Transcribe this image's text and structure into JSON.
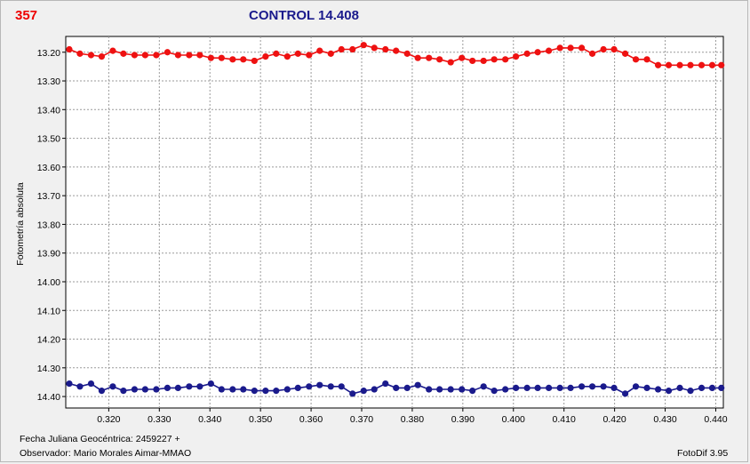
{
  "header": {
    "object_id": "357",
    "title": "CONTROL 14.408"
  },
  "footer": {
    "jd_label": "Fecha Juliana Geocéntrica: 2459227 +",
    "observer_label": "Observador: Mario Morales Aimar-MMAO",
    "software": "FotoDif 3.95"
  },
  "colors": {
    "series_red": "#ee1111",
    "series_blue": "#1a1a8c",
    "grid": "#9a9a9a",
    "plot_bg": "#ffffff"
  },
  "chart_data": {
    "type": "scatter",
    "ylabel": "Fotometría absoluta",
    "xlabel": "",
    "xlim": [
      0.3115,
      0.4415
    ],
    "ylim": [
      14.44,
      13.145
    ],
    "y_inverted": true,
    "grid": true,
    "x_ticks": [
      "0.320",
      "0.330",
      "0.340",
      "0.350",
      "0.360",
      "0.370",
      "0.380",
      "0.390",
      "0.400",
      "0.410",
      "0.420",
      "0.430",
      "0.440"
    ],
    "y_ticks": [
      "13.20",
      "13.30",
      "13.40",
      "13.50",
      "13.60",
      "13.70",
      "13.80",
      "13.90",
      "14.00",
      "14.10",
      "14.20",
      "14.30",
      "14.40"
    ],
    "series": [
      {
        "color": "#ee1111",
        "x": [
          0.3122,
          0.3143,
          0.3165,
          0.3186,
          0.3208,
          0.3229,
          0.3251,
          0.3272,
          0.3294,
          0.3316,
          0.3337,
          0.3359,
          0.338,
          0.3402,
          0.3423,
          0.3445,
          0.3466,
          0.3488,
          0.351,
          0.3531,
          0.3553,
          0.3574,
          0.3596,
          0.3617,
          0.3639,
          0.366,
          0.3682,
          0.3704,
          0.3725,
          0.3747,
          0.3768,
          0.379,
          0.3811,
          0.3833,
          0.3854,
          0.3876,
          0.3898,
          0.3919,
          0.3941,
          0.3962,
          0.3984,
          0.4005,
          0.4027,
          0.4048,
          0.407,
          0.4092,
          0.4113,
          0.4135,
          0.4156,
          0.4178,
          0.4199,
          0.4221,
          0.4242,
          0.4264,
          0.4286,
          0.4307,
          0.4329,
          0.435,
          0.4372,
          0.4393,
          0.4411
        ],
        "y": [
          13.19,
          13.205,
          13.21,
          13.215,
          13.195,
          13.205,
          13.21,
          13.21,
          13.21,
          13.2,
          13.21,
          13.21,
          13.21,
          13.22,
          13.22,
          13.225,
          13.225,
          13.23,
          13.215,
          13.205,
          13.215,
          13.205,
          13.21,
          13.195,
          13.205,
          13.19,
          13.19,
          13.175,
          13.185,
          13.19,
          13.195,
          13.205,
          13.22,
          13.22,
          13.225,
          13.235,
          13.22,
          13.23,
          13.23,
          13.225,
          13.225,
          13.215,
          13.205,
          13.2,
          13.195,
          13.185,
          13.185,
          13.185,
          13.205,
          13.19,
          13.19,
          13.205,
          13.225,
          13.225,
          13.245,
          13.245,
          13.245,
          13.245,
          13.245,
          13.245,
          13.245
        ]
      },
      {
        "color": "#1a1a8c",
        "x": [
          0.3122,
          0.3143,
          0.3165,
          0.3186,
          0.3208,
          0.3229,
          0.3251,
          0.3272,
          0.3294,
          0.3316,
          0.3337,
          0.3359,
          0.338,
          0.3402,
          0.3423,
          0.3445,
          0.3466,
          0.3488,
          0.351,
          0.3531,
          0.3553,
          0.3574,
          0.3596,
          0.3617,
          0.3639,
          0.366,
          0.3682,
          0.3704,
          0.3725,
          0.3747,
          0.3768,
          0.379,
          0.3811,
          0.3833,
          0.3854,
          0.3876,
          0.3898,
          0.3919,
          0.3941,
          0.3962,
          0.3984,
          0.4005,
          0.4027,
          0.4048,
          0.407,
          0.4092,
          0.4113,
          0.4135,
          0.4156,
          0.4178,
          0.4199,
          0.4221,
          0.4242,
          0.4264,
          0.4286,
          0.4307,
          0.4329,
          0.435,
          0.4372,
          0.4393,
          0.4411
        ],
        "y": [
          14.355,
          14.365,
          14.355,
          14.38,
          14.365,
          14.38,
          14.375,
          14.375,
          14.375,
          14.37,
          14.37,
          14.365,
          14.365,
          14.355,
          14.375,
          14.375,
          14.375,
          14.38,
          14.38,
          14.38,
          14.375,
          14.37,
          14.365,
          14.36,
          14.365,
          14.365,
          14.39,
          14.38,
          14.375,
          14.355,
          14.37,
          14.37,
          14.36,
          14.375,
          14.375,
          14.375,
          14.375,
          14.38,
          14.365,
          14.38,
          14.375,
          14.37,
          14.37,
          14.37,
          14.37,
          14.37,
          14.37,
          14.365,
          14.365,
          14.365,
          14.37,
          14.39,
          14.365,
          14.37,
          14.375,
          14.38,
          14.37,
          14.38,
          14.37,
          14.37,
          14.37
        ]
      }
    ]
  }
}
